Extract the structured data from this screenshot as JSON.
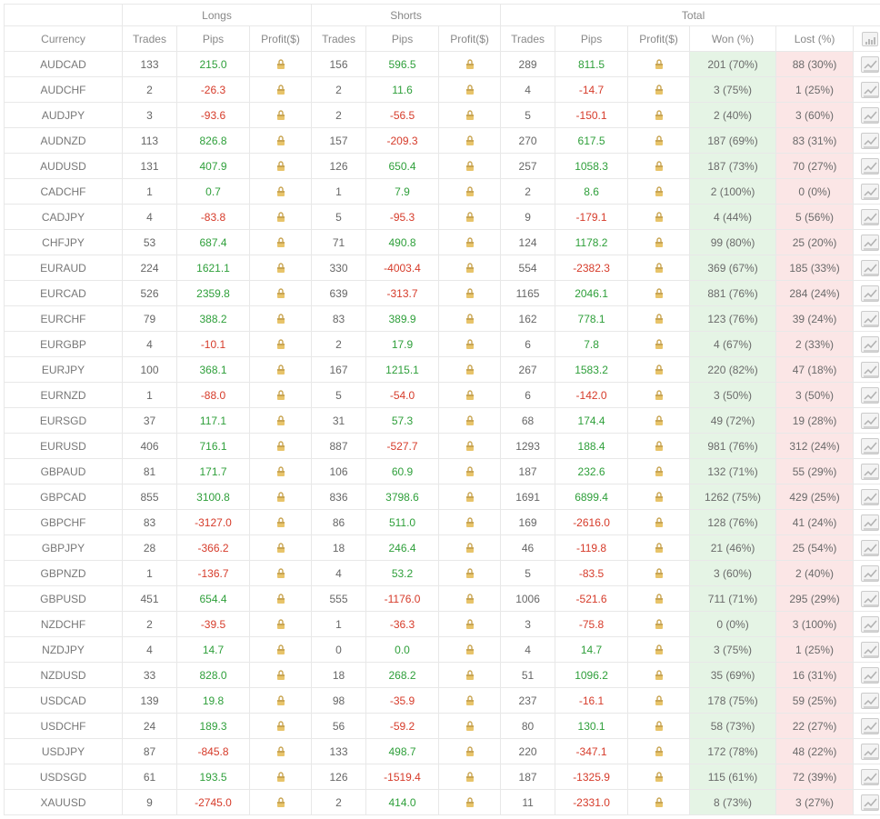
{
  "colors": {
    "positive": "#2e9f3a",
    "negative": "#d63b2a",
    "text": "#666666",
    "border": "#e8e8e8",
    "won_bg": "#e5f4e5",
    "lost_bg": "#fbe6e6",
    "lock_body": "#e8c46a",
    "lock_shadow": "#c9a553",
    "chart_stroke": "#b0b0b0"
  },
  "headers": {
    "groups": {
      "longs": "Longs",
      "shorts": "Shorts",
      "total": "Total"
    },
    "columns": {
      "currency": "Currency",
      "trades": "Trades",
      "pips": "Pips",
      "profit": "Profit($)",
      "won": "Won (%)",
      "lost": "Lost (%)"
    }
  },
  "rows": [
    {
      "currency": "AUDCAD",
      "longs": {
        "trades": 133,
        "pips": 215.0
      },
      "shorts": {
        "trades": 156,
        "pips": 596.5
      },
      "total": {
        "trades": 289,
        "pips": 811.5
      },
      "won": {
        "n": 201,
        "pct": 70
      },
      "lost": {
        "n": 88,
        "pct": 30
      }
    },
    {
      "currency": "AUDCHF",
      "longs": {
        "trades": 2,
        "pips": -26.3
      },
      "shorts": {
        "trades": 2,
        "pips": 11.6
      },
      "total": {
        "trades": 4,
        "pips": -14.7
      },
      "won": {
        "n": 3,
        "pct": 75
      },
      "lost": {
        "n": 1,
        "pct": 25
      }
    },
    {
      "currency": "AUDJPY",
      "longs": {
        "trades": 3,
        "pips": -93.6
      },
      "shorts": {
        "trades": 2,
        "pips": -56.5
      },
      "total": {
        "trades": 5,
        "pips": -150.1
      },
      "won": {
        "n": 2,
        "pct": 40
      },
      "lost": {
        "n": 3,
        "pct": 60
      }
    },
    {
      "currency": "AUDNZD",
      "longs": {
        "trades": 113,
        "pips": 826.8
      },
      "shorts": {
        "trades": 157,
        "pips": -209.3
      },
      "total": {
        "trades": 270,
        "pips": 617.5
      },
      "won": {
        "n": 187,
        "pct": 69
      },
      "lost": {
        "n": 83,
        "pct": 31
      }
    },
    {
      "currency": "AUDUSD",
      "longs": {
        "trades": 131,
        "pips": 407.9
      },
      "shorts": {
        "trades": 126,
        "pips": 650.4
      },
      "total": {
        "trades": 257,
        "pips": 1058.3
      },
      "won": {
        "n": 187,
        "pct": 73
      },
      "lost": {
        "n": 70,
        "pct": 27
      }
    },
    {
      "currency": "CADCHF",
      "longs": {
        "trades": 1,
        "pips": 0.7
      },
      "shorts": {
        "trades": 1,
        "pips": 7.9
      },
      "total": {
        "trades": 2,
        "pips": 8.6
      },
      "won": {
        "n": 2,
        "pct": 100
      },
      "lost": {
        "n": 0,
        "pct": 0
      }
    },
    {
      "currency": "CADJPY",
      "longs": {
        "trades": 4,
        "pips": -83.8
      },
      "shorts": {
        "trades": 5,
        "pips": -95.3
      },
      "total": {
        "trades": 9,
        "pips": -179.1
      },
      "won": {
        "n": 4,
        "pct": 44
      },
      "lost": {
        "n": 5,
        "pct": 56
      }
    },
    {
      "currency": "CHFJPY",
      "longs": {
        "trades": 53,
        "pips": 687.4
      },
      "shorts": {
        "trades": 71,
        "pips": 490.8
      },
      "total": {
        "trades": 124,
        "pips": 1178.2
      },
      "won": {
        "n": 99,
        "pct": 80
      },
      "lost": {
        "n": 25,
        "pct": 20
      }
    },
    {
      "currency": "EURAUD",
      "longs": {
        "trades": 224,
        "pips": 1621.1
      },
      "shorts": {
        "trades": 330,
        "pips": -4003.4
      },
      "total": {
        "trades": 554,
        "pips": -2382.3
      },
      "won": {
        "n": 369,
        "pct": 67
      },
      "lost": {
        "n": 185,
        "pct": 33
      }
    },
    {
      "currency": "EURCAD",
      "longs": {
        "trades": 526,
        "pips": 2359.8
      },
      "shorts": {
        "trades": 639,
        "pips": -313.7
      },
      "total": {
        "trades": 1165,
        "pips": 2046.1
      },
      "won": {
        "n": 881,
        "pct": 76
      },
      "lost": {
        "n": 284,
        "pct": 24
      }
    },
    {
      "currency": "EURCHF",
      "longs": {
        "trades": 79,
        "pips": 388.2
      },
      "shorts": {
        "trades": 83,
        "pips": 389.9
      },
      "total": {
        "trades": 162,
        "pips": 778.1
      },
      "won": {
        "n": 123,
        "pct": 76
      },
      "lost": {
        "n": 39,
        "pct": 24
      }
    },
    {
      "currency": "EURGBP",
      "longs": {
        "trades": 4,
        "pips": -10.1
      },
      "shorts": {
        "trades": 2,
        "pips": 17.9
      },
      "total": {
        "trades": 6,
        "pips": 7.8
      },
      "won": {
        "n": 4,
        "pct": 67
      },
      "lost": {
        "n": 2,
        "pct": 33
      }
    },
    {
      "currency": "EURJPY",
      "longs": {
        "trades": 100,
        "pips": 368.1
      },
      "shorts": {
        "trades": 167,
        "pips": 1215.1
      },
      "total": {
        "trades": 267,
        "pips": 1583.2
      },
      "won": {
        "n": 220,
        "pct": 82
      },
      "lost": {
        "n": 47,
        "pct": 18
      }
    },
    {
      "currency": "EURNZD",
      "longs": {
        "trades": 1,
        "pips": -88.0
      },
      "shorts": {
        "trades": 5,
        "pips": -54.0
      },
      "total": {
        "trades": 6,
        "pips": -142.0
      },
      "won": {
        "n": 3,
        "pct": 50
      },
      "lost": {
        "n": 3,
        "pct": 50
      }
    },
    {
      "currency": "EURSGD",
      "longs": {
        "trades": 37,
        "pips": 117.1
      },
      "shorts": {
        "trades": 31,
        "pips": 57.3
      },
      "total": {
        "trades": 68,
        "pips": 174.4
      },
      "won": {
        "n": 49,
        "pct": 72
      },
      "lost": {
        "n": 19,
        "pct": 28
      }
    },
    {
      "currency": "EURUSD",
      "longs": {
        "trades": 406,
        "pips": 716.1
      },
      "shorts": {
        "trades": 887,
        "pips": -527.7
      },
      "total": {
        "trades": 1293,
        "pips": 188.4
      },
      "won": {
        "n": 981,
        "pct": 76
      },
      "lost": {
        "n": 312,
        "pct": 24
      }
    },
    {
      "currency": "GBPAUD",
      "longs": {
        "trades": 81,
        "pips": 171.7
      },
      "shorts": {
        "trades": 106,
        "pips": 60.9
      },
      "total": {
        "trades": 187,
        "pips": 232.6
      },
      "won": {
        "n": 132,
        "pct": 71
      },
      "lost": {
        "n": 55,
        "pct": 29
      }
    },
    {
      "currency": "GBPCAD",
      "longs": {
        "trades": 855,
        "pips": 3100.8
      },
      "shorts": {
        "trades": 836,
        "pips": 3798.6
      },
      "total": {
        "trades": 1691,
        "pips": 6899.4
      },
      "won": {
        "n": 1262,
        "pct": 75
      },
      "lost": {
        "n": 429,
        "pct": 25
      }
    },
    {
      "currency": "GBPCHF",
      "longs": {
        "trades": 83,
        "pips": -3127.0
      },
      "shorts": {
        "trades": 86,
        "pips": 511.0
      },
      "total": {
        "trades": 169,
        "pips": -2616.0
      },
      "won": {
        "n": 128,
        "pct": 76
      },
      "lost": {
        "n": 41,
        "pct": 24
      }
    },
    {
      "currency": "GBPJPY",
      "longs": {
        "trades": 28,
        "pips": -366.2
      },
      "shorts": {
        "trades": 18,
        "pips": 246.4
      },
      "total": {
        "trades": 46,
        "pips": -119.8
      },
      "won": {
        "n": 21,
        "pct": 46
      },
      "lost": {
        "n": 25,
        "pct": 54
      }
    },
    {
      "currency": "GBPNZD",
      "longs": {
        "trades": 1,
        "pips": -136.7
      },
      "shorts": {
        "trades": 4,
        "pips": 53.2
      },
      "total": {
        "trades": 5,
        "pips": -83.5
      },
      "won": {
        "n": 3,
        "pct": 60
      },
      "lost": {
        "n": 2,
        "pct": 40
      }
    },
    {
      "currency": "GBPUSD",
      "longs": {
        "trades": 451,
        "pips": 654.4
      },
      "shorts": {
        "trades": 555,
        "pips": -1176.0
      },
      "total": {
        "trades": 1006,
        "pips": -521.6
      },
      "won": {
        "n": 711,
        "pct": 71
      },
      "lost": {
        "n": 295,
        "pct": 29
      }
    },
    {
      "currency": "NZDCHF",
      "longs": {
        "trades": 2,
        "pips": -39.5
      },
      "shorts": {
        "trades": 1,
        "pips": -36.3
      },
      "total": {
        "trades": 3,
        "pips": -75.8
      },
      "won": {
        "n": 0,
        "pct": 0
      },
      "lost": {
        "n": 3,
        "pct": 100
      }
    },
    {
      "currency": "NZDJPY",
      "longs": {
        "trades": 4,
        "pips": 14.7
      },
      "shorts": {
        "trades": 0,
        "pips": 0.0
      },
      "total": {
        "trades": 4,
        "pips": 14.7
      },
      "won": {
        "n": 3,
        "pct": 75
      },
      "lost": {
        "n": 1,
        "pct": 25
      }
    },
    {
      "currency": "NZDUSD",
      "longs": {
        "trades": 33,
        "pips": 828.0
      },
      "shorts": {
        "trades": 18,
        "pips": 268.2
      },
      "total": {
        "trades": 51,
        "pips": 1096.2
      },
      "won": {
        "n": 35,
        "pct": 69
      },
      "lost": {
        "n": 16,
        "pct": 31
      }
    },
    {
      "currency": "USDCAD",
      "longs": {
        "trades": 139,
        "pips": 19.8
      },
      "shorts": {
        "trades": 98,
        "pips": -35.9
      },
      "total": {
        "trades": 237,
        "pips": -16.1
      },
      "won": {
        "n": 178,
        "pct": 75
      },
      "lost": {
        "n": 59,
        "pct": 25
      }
    },
    {
      "currency": "USDCHF",
      "longs": {
        "trades": 24,
        "pips": 189.3
      },
      "shorts": {
        "trades": 56,
        "pips": -59.2
      },
      "total": {
        "trades": 80,
        "pips": 130.1
      },
      "won": {
        "n": 58,
        "pct": 73
      },
      "lost": {
        "n": 22,
        "pct": 27
      }
    },
    {
      "currency": "USDJPY",
      "longs": {
        "trades": 87,
        "pips": -845.8
      },
      "shorts": {
        "trades": 133,
        "pips": 498.7
      },
      "total": {
        "trades": 220,
        "pips": -347.1
      },
      "won": {
        "n": 172,
        "pct": 78
      },
      "lost": {
        "n": 48,
        "pct": 22
      }
    },
    {
      "currency": "USDSGD",
      "longs": {
        "trades": 61,
        "pips": 193.5
      },
      "shorts": {
        "trades": 126,
        "pips": -1519.4
      },
      "total": {
        "trades": 187,
        "pips": -1325.9
      },
      "won": {
        "n": 115,
        "pct": 61
      },
      "lost": {
        "n": 72,
        "pct": 39
      }
    },
    {
      "currency": "XAUUSD",
      "longs": {
        "trades": 9,
        "pips": -2745.0
      },
      "shorts": {
        "trades": 2,
        "pips": 414.0
      },
      "total": {
        "trades": 11,
        "pips": -2331.0
      },
      "won": {
        "n": 8,
        "pct": 73
      },
      "lost": {
        "n": 3,
        "pct": 27
      }
    }
  ]
}
